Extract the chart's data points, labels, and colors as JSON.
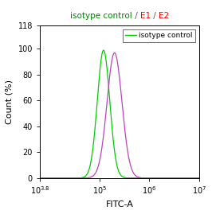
{
  "title_parts": [
    {
      "text": "isotype control",
      "color": "#008000"
    },
    {
      "text": " / ",
      "color": "#555555"
    },
    {
      "text": "E1",
      "color": "#FF0000"
    },
    {
      "text": " / ",
      "color": "#555555"
    },
    {
      "text": "E2",
      "color": "#FF0000"
    }
  ],
  "xlabel": "FITC-A",
  "ylabel": "Count (%)",
  "xlim_log_min": 3.8,
  "xlim_log_max": 7,
  "ylim": [
    0,
    118
  ],
  "yticks": [
    0,
    20,
    40,
    60,
    80,
    100
  ],
  "ytick_extra": 118,
  "green_peak_log": 5.08,
  "green_sigma_log": 0.125,
  "green_amplitude": 99,
  "magenta_peak_log": 5.3,
  "magenta_sigma_log": 0.15,
  "magenta_amplitude": 97,
  "green_color": "#00CC00",
  "magenta_color": "#BB44BB",
  "background_color": "#ffffff",
  "legend_label": "isotype control",
  "legend_color": "#00CC00",
  "title_fontsize": 7.5,
  "tick_fontsize": 7,
  "axis_label_fontsize": 8
}
